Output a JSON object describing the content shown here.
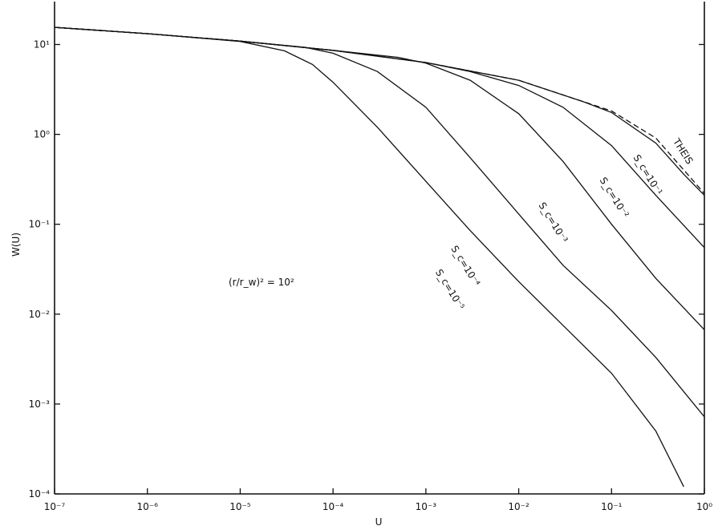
{
  "chart_data": {
    "type": "line",
    "title": "",
    "xlabel": "U",
    "ylabel": "W(U)",
    "xscale": "log",
    "yscale": "log",
    "xlim": [
      1e-07,
      1
    ],
    "ylim": [
      0.0001,
      30
    ],
    "x_tick_labels": [
      "10⁻⁷",
      "10⁻⁶",
      "10⁻⁵",
      "10⁻⁴",
      "10⁻³",
      "10⁻²",
      "10⁻¹",
      "10⁰"
    ],
    "y_tick_labels": [
      "10⁻⁴",
      "10⁻³",
      "10⁻²",
      "10⁻¹",
      "10⁰",
      "10¹"
    ],
    "grid": false,
    "annotation": "(r/r_w)² = 10²",
    "series": [
      {
        "name": "THEIS",
        "style": "dashed",
        "x": [
          1e-07,
          1e-06,
          1e-05,
          0.0001,
          0.001,
          0.01,
          0.1,
          0.3,
          1
        ],
        "y": [
          15.5,
          13.2,
          10.9,
          8.6,
          6.3,
          4.0,
          1.82,
          0.91,
          0.22
        ]
      },
      {
        "name": "S_c=10⁻¹",
        "style": "solid",
        "x": [
          1e-07,
          1e-06,
          1e-05,
          0.0001,
          0.001,
          0.01,
          0.05,
          0.1,
          0.3,
          0.6,
          1
        ],
        "y": [
          15.5,
          13.2,
          10.9,
          8.6,
          6.3,
          4.0,
          2.3,
          1.75,
          0.8,
          0.36,
          0.21
        ]
      },
      {
        "name": "S_c=10⁻²",
        "style": "solid",
        "x": [
          1e-07,
          1e-06,
          1e-05,
          0.0001,
          0.001,
          0.003,
          0.01,
          0.03,
          0.1,
          0.3,
          1
        ],
        "y": [
          15.5,
          13.2,
          10.9,
          8.6,
          6.3,
          5.0,
          3.5,
          2.0,
          0.75,
          0.21,
          0.055
        ]
      },
      {
        "name": "S_c=10⁻³",
        "style": "solid",
        "x": [
          1e-07,
          1e-06,
          1e-05,
          0.0001,
          0.0005,
          0.001,
          0.003,
          0.01,
          0.03,
          0.1,
          0.3,
          1
        ],
        "y": [
          15.5,
          13.2,
          10.9,
          8.6,
          7.2,
          6.2,
          4.0,
          1.7,
          0.5,
          0.1,
          0.025,
          0.0067
        ]
      },
      {
        "name": "S_c=10⁻⁴",
        "style": "solid",
        "x": [
          1e-07,
          1e-06,
          1e-05,
          5e-05,
          0.0001,
          0.0003,
          0.001,
          0.003,
          0.01,
          0.03,
          0.1,
          0.3,
          1
        ],
        "y": [
          15.5,
          13.2,
          10.9,
          9.3,
          8.0,
          5.0,
          2.0,
          0.55,
          0.13,
          0.035,
          0.011,
          0.0033,
          0.00072
        ]
      },
      {
        "name": "S_c=10⁻⁵",
        "style": "solid",
        "x": [
          1e-07,
          1e-06,
          1e-05,
          3e-05,
          6e-05,
          0.0001,
          0.0003,
          0.001,
          0.003,
          0.01,
          0.03,
          0.1,
          0.3,
          0.6
        ],
        "y": [
          15.5,
          13.2,
          10.8,
          8.5,
          6.0,
          3.8,
          1.2,
          0.3,
          0.085,
          0.023,
          0.0075,
          0.0022,
          0.0005,
          0.00012
        ]
      }
    ]
  }
}
